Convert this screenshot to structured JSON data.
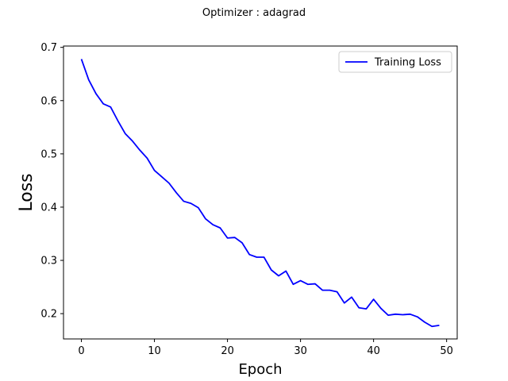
{
  "chart_data": {
    "type": "line",
    "title": "Optimizer : adagrad",
    "xlabel": "Epoch",
    "ylabel": "Loss",
    "xlim": [
      -2.45,
      51.45
    ],
    "ylim": [
      0.1525,
      0.7025
    ],
    "xticks": [
      0,
      10,
      20,
      30,
      40,
      50
    ],
    "xtick_labels": [
      "0",
      "10",
      "20",
      "30",
      "40",
      "50"
    ],
    "yticks": [
      0.2,
      0.3,
      0.4,
      0.5,
      0.6,
      0.7
    ],
    "ytick_labels": [
      "0.2",
      "0.3",
      "0.4",
      "0.5",
      "0.6",
      "0.7"
    ],
    "grid": false,
    "legend_position": "top-right",
    "series": [
      {
        "name": "Training Loss",
        "color": "#0000ff",
        "x": [
          0,
          1,
          2,
          3,
          4,
          5,
          6,
          7,
          8,
          9,
          10,
          11,
          12,
          13,
          14,
          15,
          16,
          17,
          18,
          19,
          20,
          21,
          22,
          23,
          24,
          25,
          26,
          27,
          28,
          29,
          30,
          31,
          32,
          33,
          34,
          35,
          36,
          37,
          38,
          39,
          40,
          41,
          42,
          43,
          44,
          45,
          46,
          47,
          48,
          49
        ],
        "values": [
          0.678,
          0.639,
          0.613,
          0.594,
          0.588,
          0.562,
          0.538,
          0.524,
          0.507,
          0.492,
          0.469,
          0.457,
          0.445,
          0.427,
          0.411,
          0.407,
          0.399,
          0.378,
          0.367,
          0.361,
          0.342,
          0.343,
          0.333,
          0.311,
          0.306,
          0.306,
          0.282,
          0.271,
          0.28,
          0.255,
          0.262,
          0.255,
          0.256,
          0.244,
          0.244,
          0.241,
          0.22,
          0.231,
          0.211,
          0.209,
          0.227,
          0.21,
          0.197,
          0.199,
          0.198,
          0.199,
          0.194,
          0.184,
          0.176,
          0.178
        ]
      }
    ]
  }
}
